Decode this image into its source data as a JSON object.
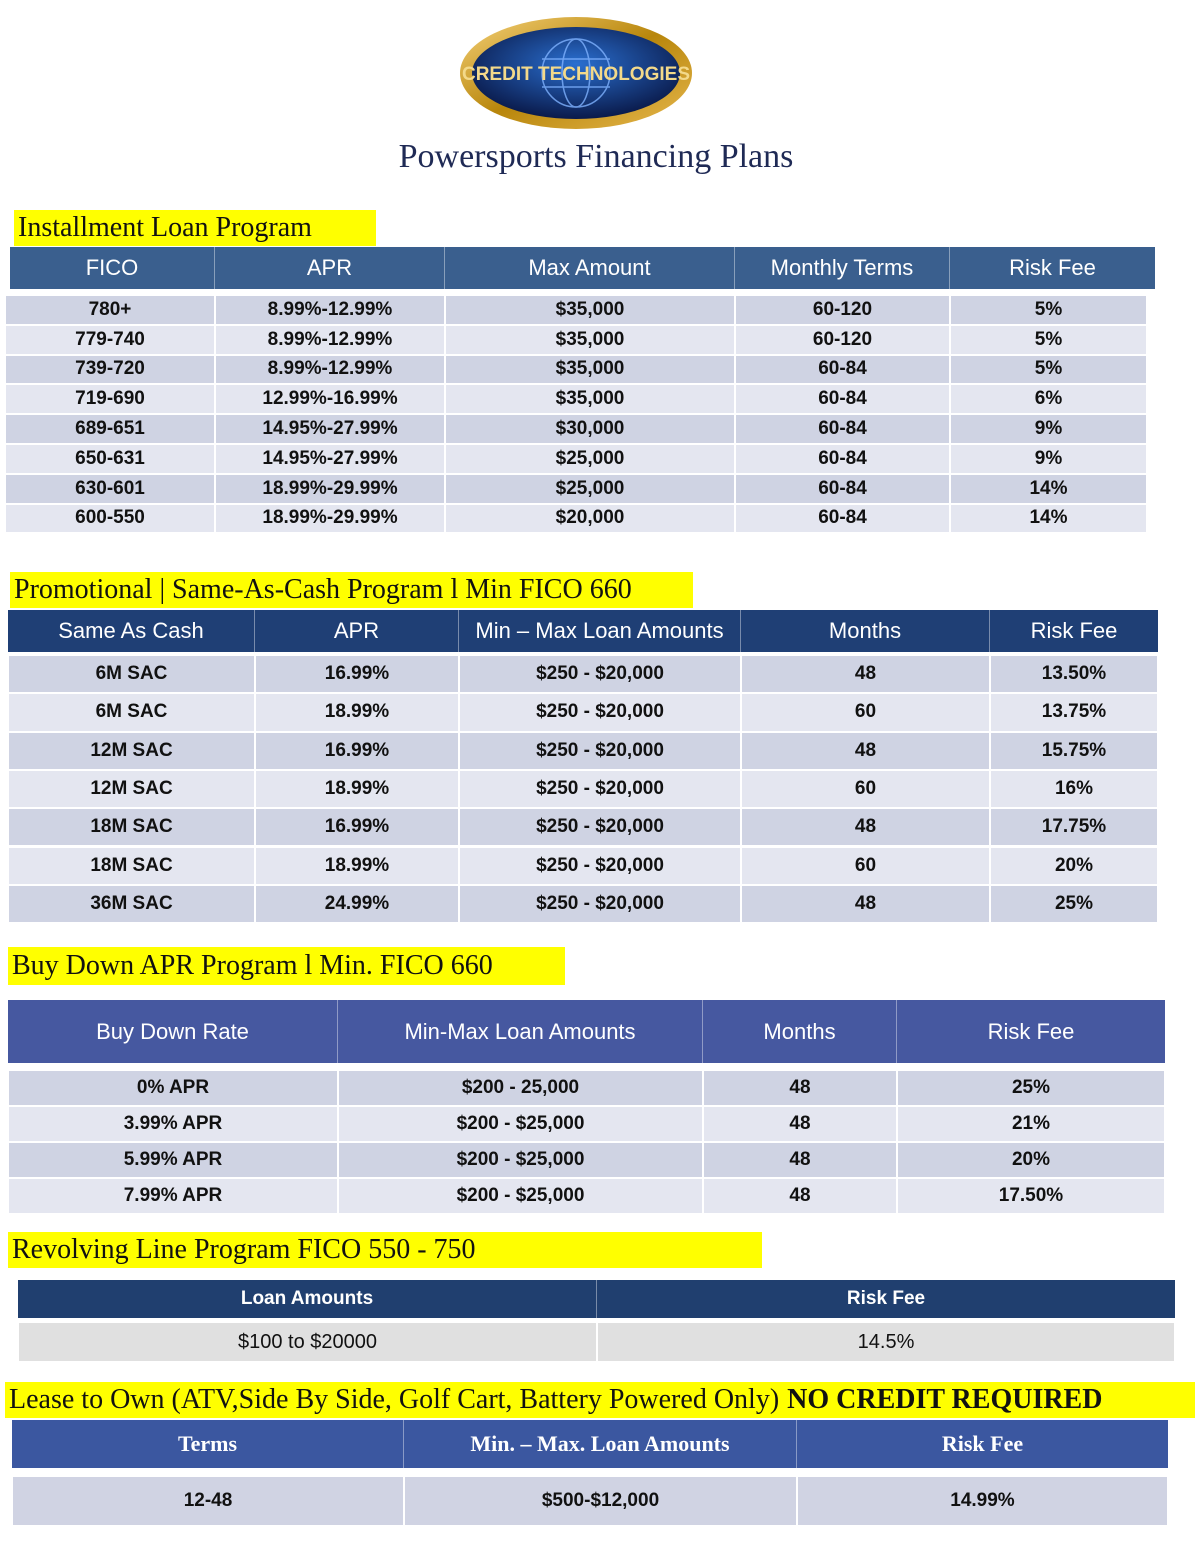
{
  "logo": {
    "text": "CREDIT TECHNOLOGIES"
  },
  "header": {
    "title": "Powersports  Financing Plans"
  },
  "sections": [
    {
      "title": "Installment Loan Program",
      "headers": [
        "FICO",
        "APR",
        "Max Amount",
        "Monthly Terms",
        "Risk Fee"
      ],
      "rows": [
        [
          "780+",
          "8.99%-12.99%",
          "$35,000",
          "60-120",
          "5%"
        ],
        [
          "779-740",
          "8.99%-12.99%",
          "$35,000",
          "60-120",
          "5%"
        ],
        [
          "739-720",
          "8.99%-12.99%",
          "$35,000",
          "60-84",
          "5%"
        ],
        [
          "719-690",
          "12.99%-16.99%",
          "$35,000",
          "60-84",
          "6%"
        ],
        [
          "689-651",
          "14.95%-27.99%",
          "$30,000",
          "60-84",
          "9%"
        ],
        [
          "650-631",
          "14.95%-27.99%",
          "$25,000",
          "60-84",
          "9%"
        ],
        [
          "630-601",
          "18.99%-29.99%",
          "$25,000",
          "60-84",
          "14%"
        ],
        [
          "600-550",
          "18.99%-29.99%",
          "$20,000",
          "60-84",
          "14%"
        ]
      ]
    },
    {
      "title": "Promotional | Same-As-Cash Program l Min FICO 660",
      "headers": [
        "Same As Cash",
        "APR",
        "Min – Max Loan Amounts",
        "Months",
        "Risk Fee"
      ],
      "rows": [
        [
          "6M SAC",
          "16.99%",
          "$250 - $20,000",
          "48",
          "13.50%"
        ],
        [
          "6M SAC",
          "18.99%",
          "$250 - $20,000",
          "60",
          "13.75%"
        ],
        [
          "12M SAC",
          "16.99%",
          "$250 - $20,000",
          "48",
          "15.75%"
        ],
        [
          "12M SAC",
          "18.99%",
          "$250 - $20,000",
          "60",
          "16%"
        ],
        [
          "18M SAC",
          "16.99%",
          "$250 - $20,000",
          "48",
          "17.75%"
        ],
        [
          "18M SAC",
          "18.99%",
          "$250 - $20,000",
          "60",
          "20%"
        ],
        [
          "36M SAC",
          "24.99%",
          "$250 - $20,000",
          "48",
          "25%"
        ]
      ]
    },
    {
      "title": "Buy Down APR Program l Min. FICO 660",
      "headers": [
        "Buy Down Rate",
        "Min-Max Loan Amounts",
        "Months",
        "Risk Fee"
      ],
      "rows": [
        [
          "0% APR",
          "$200 - 25,000",
          "48",
          "25%"
        ],
        [
          "3.99% APR",
          "$200 - $25,000",
          "48",
          "21%"
        ],
        [
          "5.99% APR",
          "$200 - $25,000",
          "48",
          "20%"
        ],
        [
          "7.99% APR",
          "$200 - $25,000",
          "48",
          "17.50%"
        ]
      ]
    },
    {
      "title": "Revolving Line Program FICO 550 - 750",
      "headers": [
        "Loan Amounts",
        "Risk Fee"
      ],
      "rows": [
        [
          "$100 to $20000",
          "14.5%"
        ]
      ]
    },
    {
      "title": "Lease to Own (ATV,Side By Side, Golf Cart, Battery Powered Only)",
      "title_emphasis": "NO CREDIT REQUIRED",
      "headers": [
        "Terms",
        "Min. – Max. Loan Amounts",
        "Risk Fee"
      ],
      "rows": [
        [
          "12-48",
          "$500-$12,000",
          "14.99%"
        ]
      ]
    }
  ]
}
